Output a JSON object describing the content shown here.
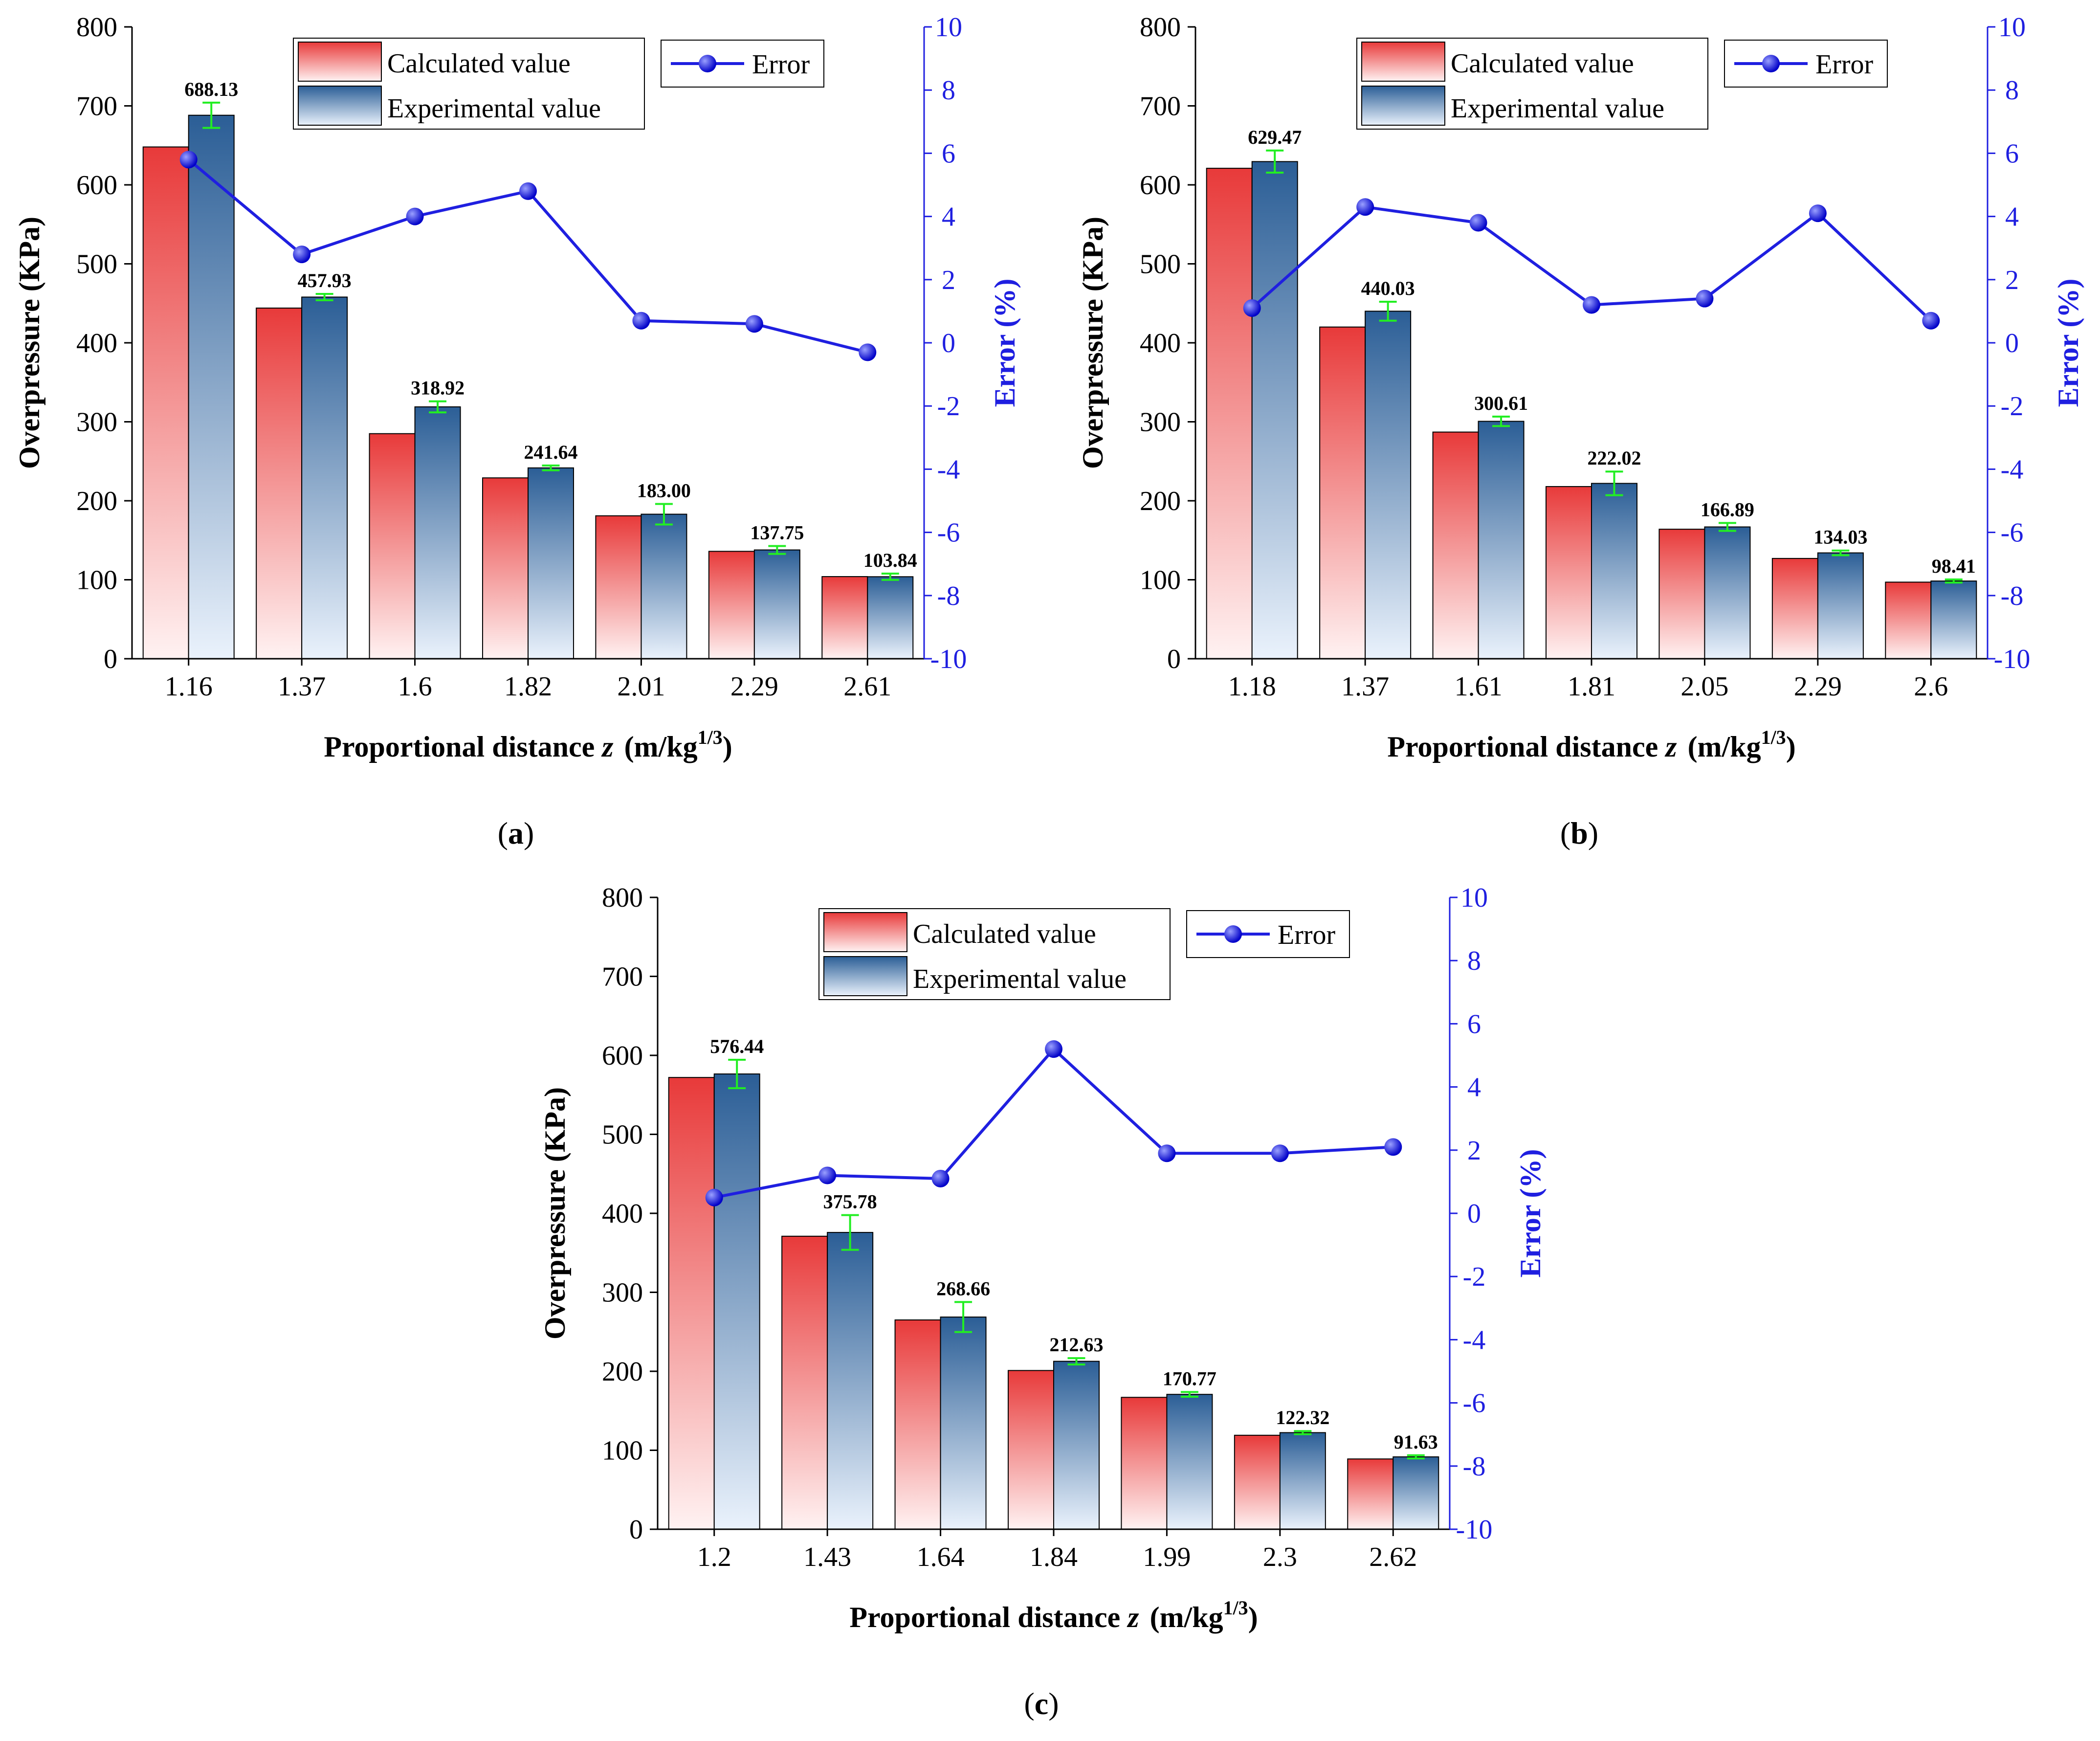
{
  "legend": {
    "calculated": "Calculated value",
    "experimental": "Experimental value",
    "error": "Error"
  },
  "axes": {
    "ylabel_left": "Overpressure (KPa)",
    "ylabel_right": "Error (%)",
    "xlabel_main": "Proportional distance ",
    "xlabel_var": "z",
    "xlabel_unit": "(m/kg",
    "xlabel_sup": "1/3",
    "xlabel_close": ")",
    "left_ticks": [
      "0",
      "100",
      "200",
      "300",
      "400",
      "500",
      "600",
      "700",
      "800"
    ],
    "right_ticks": [
      "-10",
      "-8",
      "-6",
      "-4",
      "-2",
      "0",
      "2",
      "4",
      "6",
      "8",
      "10"
    ]
  },
  "colors": {
    "calculated_top": "#e83a3a",
    "calculated_bottom": "#fff2f2",
    "experimental_top": "#2b5e96",
    "experimental_bottom": "#eaf2fc",
    "error_line": "#1f1fe0",
    "error_bar": "#22ee22"
  },
  "chart_data": [
    {
      "type": "bar",
      "panel_label": "a",
      "categories": [
        "1.16",
        "1.37",
        "1.6",
        "1.82",
        "2.01",
        "2.29",
        "2.61"
      ],
      "series": [
        {
          "name": "Calculated value",
          "values": [
            648,
            444,
            285,
            229,
            181,
            136,
            104
          ]
        },
        {
          "name": "Experimental value",
          "values": [
            688.13,
            457.93,
            318.92,
            241.64,
            183.0,
            137.75,
            103.84
          ],
          "error": [
            16,
            4,
            7,
            3,
            13,
            5,
            4
          ]
        },
        {
          "name": "Error",
          "axis": "right",
          "line": true,
          "values": [
            5.8,
            2.8,
            4.0,
            4.8,
            0.7,
            0.6,
            -0.3
          ]
        }
      ],
      "data_labels": [
        "688.13",
        "457.93",
        "318.92",
        "241.64",
        "183.00",
        "137.75",
        "103.84"
      ],
      "ylim": [
        0,
        800
      ],
      "ylim_right": [
        -10,
        10
      ]
    },
    {
      "type": "bar",
      "panel_label": "b",
      "categories": [
        "1.18",
        "1.37",
        "1.61",
        "1.81",
        "2.05",
        "2.29",
        "2.6"
      ],
      "series": [
        {
          "name": "Calculated value",
          "values": [
            621,
            420,
            287,
            218,
            164,
            127,
            97
          ]
        },
        {
          "name": "Experimental value",
          "values": [
            629.47,
            440.03,
            300.61,
            222.02,
            166.89,
            134.03,
            98.41
          ],
          "error": [
            14,
            12,
            6,
            15,
            5,
            3,
            2
          ]
        },
        {
          "name": "Error",
          "axis": "right",
          "line": true,
          "values": [
            1.1,
            4.3,
            3.8,
            1.2,
            1.4,
            4.1,
            0.7
          ]
        }
      ],
      "data_labels": [
        "629.47",
        "440.03",
        "300.61",
        "222.02",
        "166.89",
        "134.03",
        "98.41"
      ],
      "ylim": [
        0,
        800
      ],
      "ylim_right": [
        -10,
        10
      ]
    },
    {
      "type": "bar",
      "panel_label": "c",
      "categories": [
        "1.2",
        "1.43",
        "1.64",
        "1.84",
        "1.99",
        "2.3",
        "2.62"
      ],
      "series": [
        {
          "name": "Calculated value",
          "values": [
            572,
            371,
            265,
            201,
            167,
            119,
            89
          ]
        },
        {
          "name": "Experimental value",
          "values": [
            576.44,
            375.78,
            268.66,
            212.63,
            170.77,
            122.32,
            91.63
          ],
          "error": [
            18,
            22,
            19,
            4,
            3,
            2,
            2
          ]
        },
        {
          "name": "Error",
          "axis": "right",
          "line": true,
          "values": [
            0.5,
            1.2,
            1.1,
            5.2,
            1.9,
            1.9,
            2.1
          ]
        }
      ],
      "data_labels": [
        "576.44",
        "375.78",
        "268.66",
        "212.63",
        "170.77",
        "122.32",
        "91.63"
      ],
      "ylim": [
        0,
        800
      ],
      "ylim_right": [
        -10,
        10
      ]
    }
  ]
}
